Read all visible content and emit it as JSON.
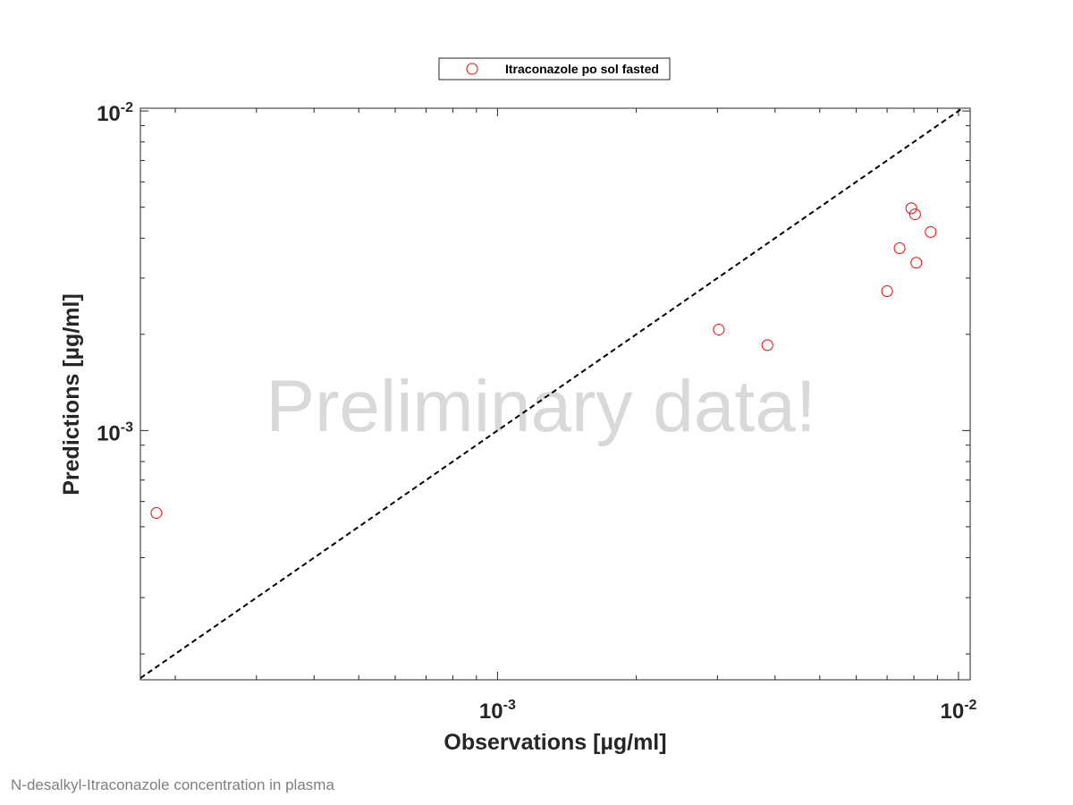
{
  "chart_data": {
    "type": "scatter",
    "x_scale": "log",
    "y_scale": "log",
    "xlabel": "Observations [µg/ml]",
    "ylabel": "Predictions [µg/ml]",
    "xlim": [
      0.000168,
      0.0106
    ],
    "ylim": [
      0.000166,
      0.0102
    ],
    "x_ticks": [
      {
        "value": 0.001,
        "base": "10",
        "exp": "-3"
      },
      {
        "value": 0.01,
        "base": "10",
        "exp": "-2"
      }
    ],
    "y_ticks": [
      {
        "value": 0.001,
        "base": "10",
        "exp": "-3"
      },
      {
        "value": 0.01,
        "base": "10",
        "exp": "-2"
      }
    ],
    "grid": false,
    "legend": {
      "position": "top",
      "entries": [
        "Itraconazole po sol fasted"
      ]
    },
    "series": [
      {
        "name": "Itraconazole po sol fasted",
        "marker": "circle-open",
        "color": "#ff0000",
        "points": [
          {
            "x": 0.000182,
            "y": 0.000552
          },
          {
            "x": 0.00302,
            "y": 0.00207
          },
          {
            "x": 0.00385,
            "y": 0.00185
          },
          {
            "x": 0.007,
            "y": 0.00273
          },
          {
            "x": 0.00745,
            "y": 0.00372
          },
          {
            "x": 0.0079,
            "y": 0.00496
          },
          {
            "x": 0.00805,
            "y": 0.00475
          },
          {
            "x": 0.0081,
            "y": 0.00335
          },
          {
            "x": 0.0087,
            "y": 0.00418
          }
        ]
      }
    ],
    "reference_line": {
      "type": "identity",
      "style": "dashed",
      "color": "#000000"
    },
    "watermark": "Preliminary data!"
  },
  "caption": "N-desalkyl-Itraconazole concentration in plasma"
}
